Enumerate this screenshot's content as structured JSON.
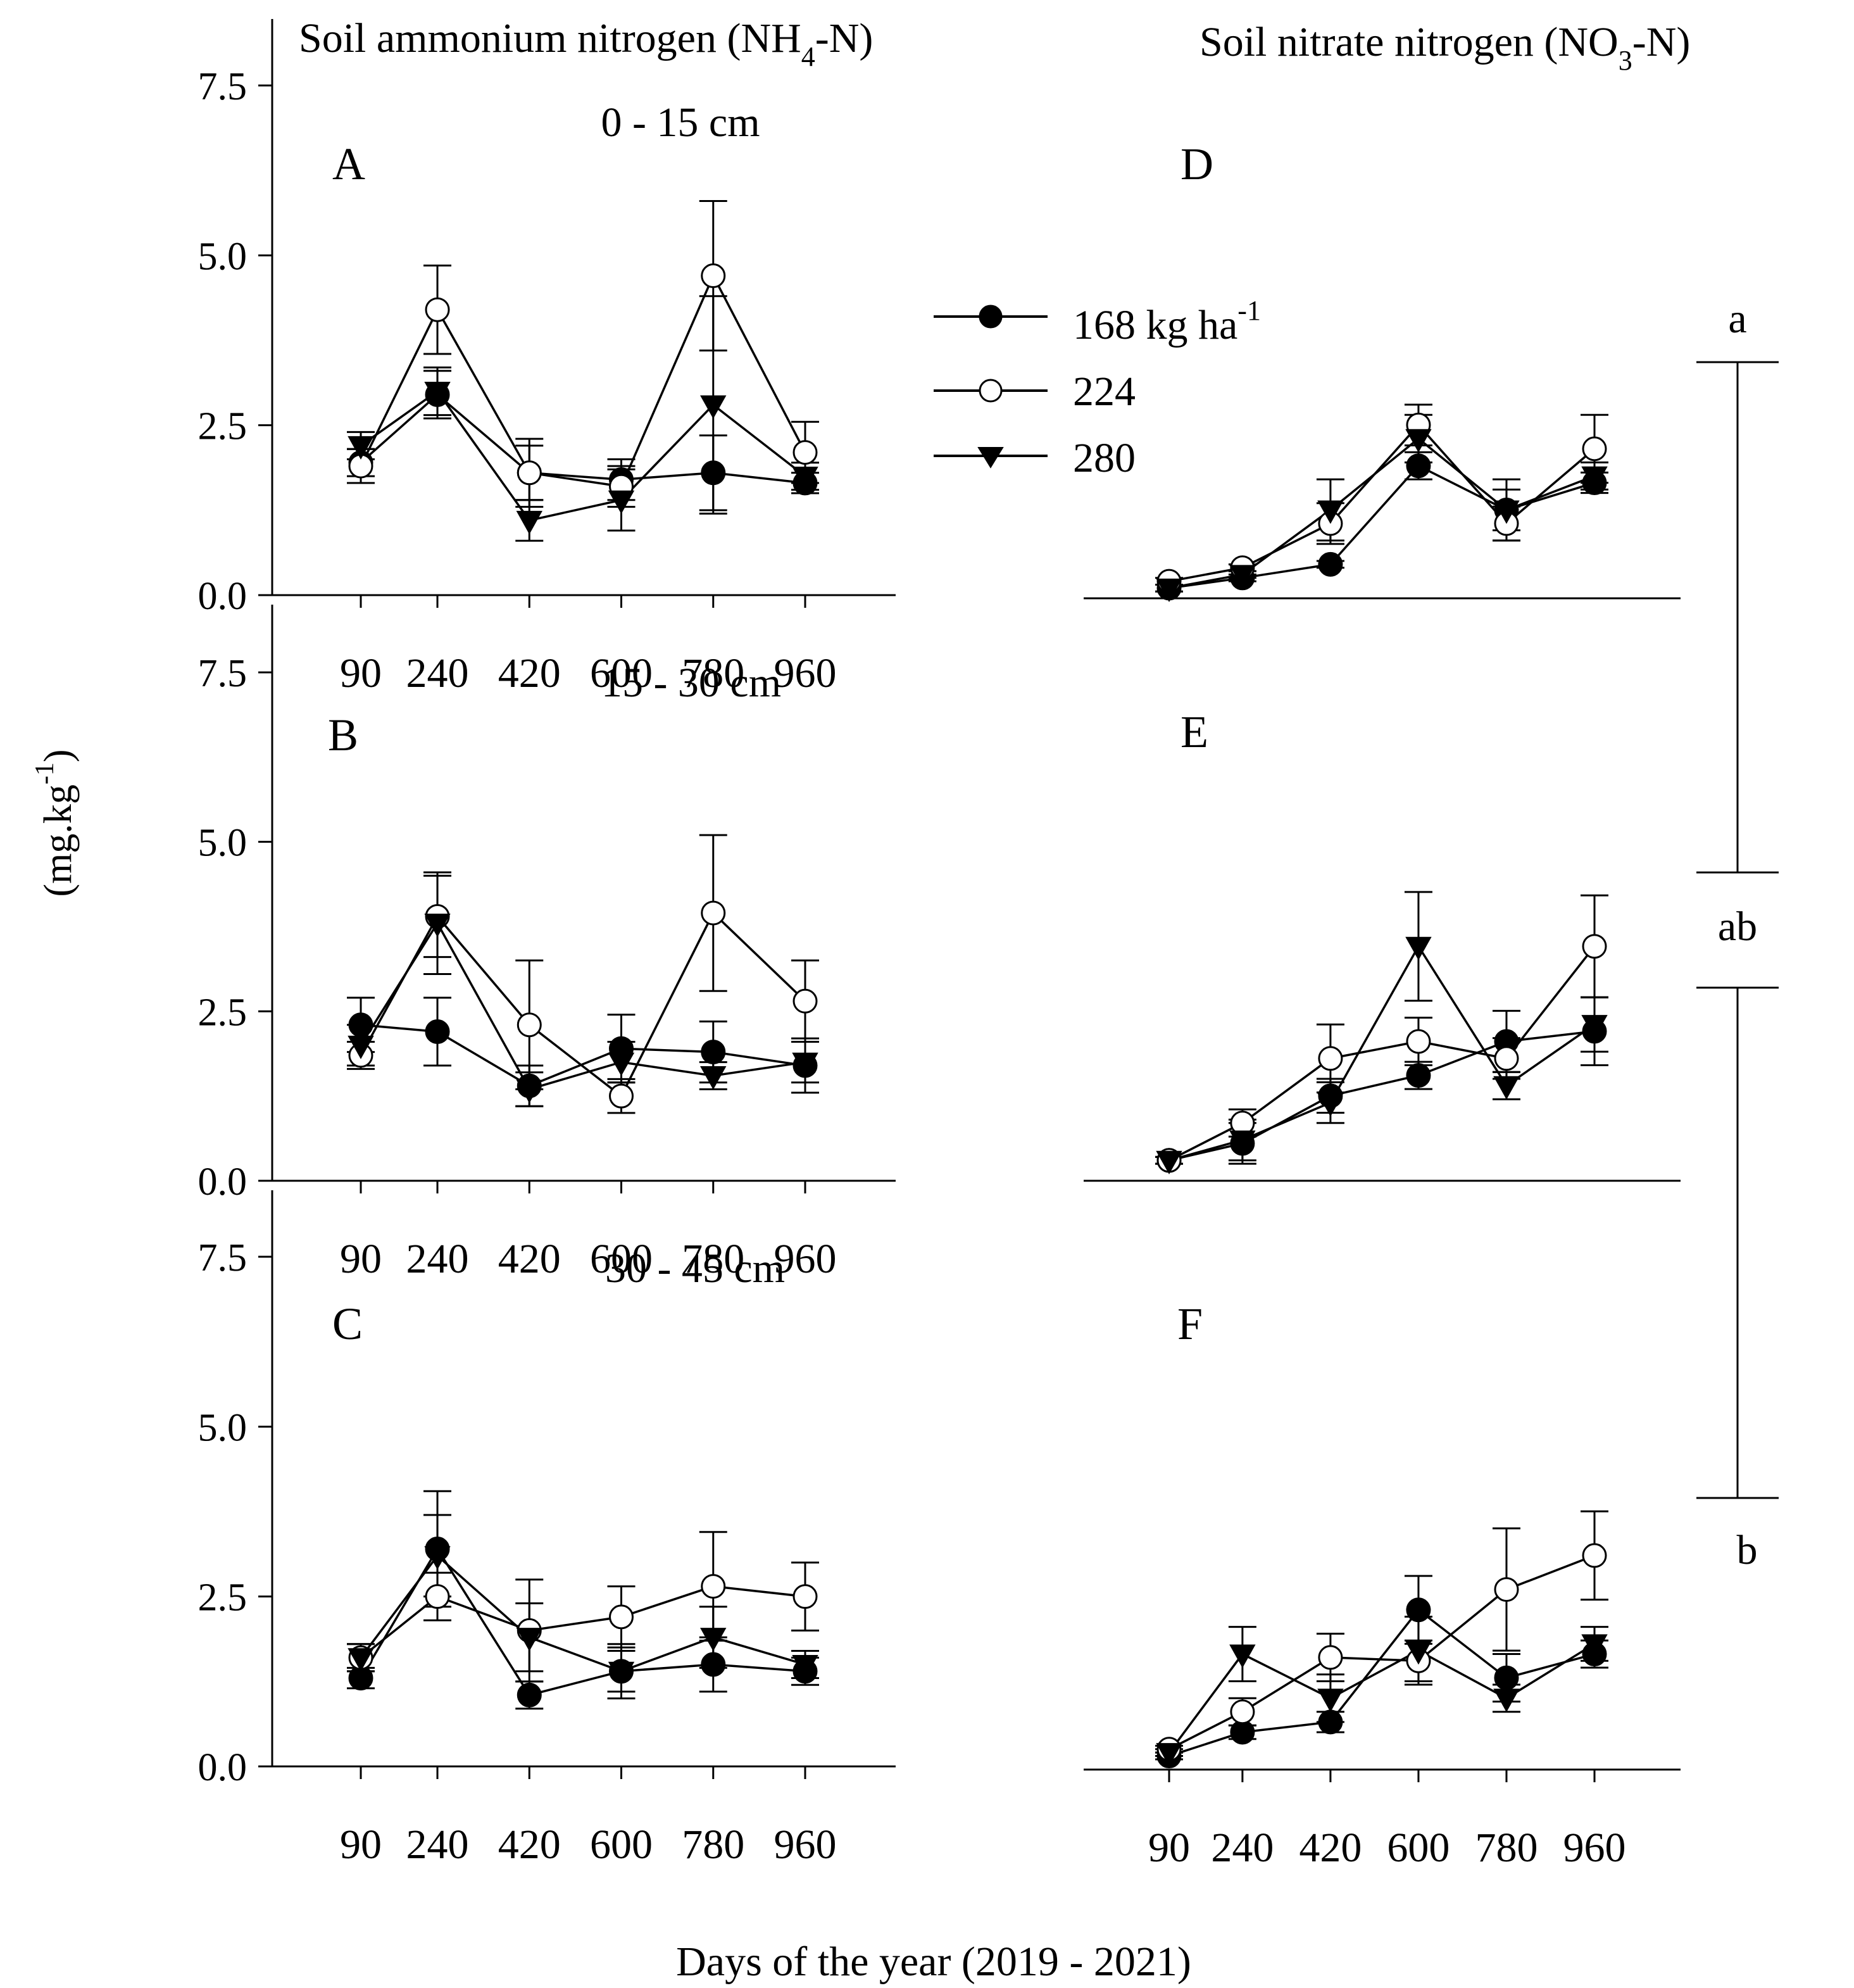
{
  "figure": {
    "y_axis_label": "(mg.kg",
    "y_axis_label_sup": "-1",
    "y_axis_label_end": ")",
    "x_axis_label": "Days of the year (2019 - 2021)",
    "left_column_title": "Soil ammonium nitrogen (NH",
    "left_column_title_sub": "4",
    "left_column_title_end": "-N)",
    "right_column_title": "Soil nitrate nitrogen (NO",
    "right_column_title_sub": "3",
    "right_column_title_end": "-N)"
  },
  "legend": {
    "entries": [
      {
        "label": "168 kg ha",
        "label_sup": "-1",
        "marker": "filled-circle"
      },
      {
        "label": "224",
        "marker": "open-circle"
      },
      {
        "label": "280",
        "marker": "filled-triangle-down"
      }
    ]
  },
  "significance": {
    "letters": [
      "a",
      "ab",
      "b"
    ]
  },
  "chart_data": [
    {
      "type": "line",
      "panel": "A",
      "title": "0 - 15 cm",
      "xlabel": "",
      "ylabel": "(mg.kg-1)",
      "x": [
        90,
        240,
        420,
        600,
        780,
        960
      ],
      "x_ticks": [
        "90",
        "240",
        "420",
        "600",
        "780",
        "960"
      ],
      "y_ticks": [
        "0.0",
        "2.5",
        "5.0",
        "7.5"
      ],
      "ylim": [
        0,
        7.5
      ],
      "series": [
        {
          "name": "168 kg ha-1",
          "values": [
            1.95,
            2.95,
            1.8,
            1.7,
            1.8,
            1.65
          ],
          "errors": [
            0.2,
            0.35,
            0.4,
            0.3,
            0.55,
            0.15
          ]
        },
        {
          "name": "224",
          "values": [
            1.9,
            4.2,
            1.8,
            1.6,
            4.7,
            2.1
          ],
          "errors": [
            0.25,
            0.65,
            0.5,
            0.3,
            1.1,
            0.45
          ]
        },
        {
          "name": "280",
          "values": [
            2.2,
            3.0,
            1.1,
            1.4,
            2.8,
            1.75
          ],
          "errors": [
            0.2,
            0.35,
            0.3,
            0.45,
            1.6,
            0.2
          ]
        }
      ]
    },
    {
      "type": "line",
      "panel": "B",
      "title": "15 - 30 cm",
      "xlabel": "",
      "ylabel": "(mg.kg-1)",
      "x": [
        90,
        240,
        420,
        600,
        780,
        960
      ],
      "x_ticks": [
        "90",
        "240",
        "420",
        "600",
        "780",
        "960"
      ],
      "y_ticks": [
        "0.0",
        "2.5",
        "5.0",
        "7.5"
      ],
      "ylim": [
        0,
        7.5
      ],
      "series": [
        {
          "name": "168 kg ha-1",
          "values": [
            2.3,
            2.2,
            1.4,
            1.95,
            1.9,
            1.7
          ],
          "errors": [
            0.4,
            0.5,
            0.3,
            0.5,
            0.45,
            0.4
          ]
        },
        {
          "name": "224",
          "values": [
            1.85,
            3.9,
            2.3,
            1.25,
            3.95,
            2.65
          ],
          "errors": [
            0.2,
            0.6,
            0.95,
            0.25,
            1.15,
            0.6
          ]
        },
        {
          "name": "280",
          "values": [
            2.0,
            3.8,
            1.35,
            1.75,
            1.55,
            1.75
          ],
          "errors": [
            0.3,
            0.75,
            0.25,
            0.3,
            0.2,
            0.3
          ]
        }
      ]
    },
    {
      "type": "line",
      "panel": "C",
      "title": "30 - 45 cm",
      "xlabel": "Days of the year (2019 - 2021)",
      "ylabel": "(mg.kg-1)",
      "x": [
        90,
        240,
        420,
        600,
        780,
        960
      ],
      "x_ticks": [
        "90",
        "240",
        "420",
        "600",
        "780",
        "960"
      ],
      "y_ticks": [
        "0.0",
        "2.5",
        "5.0",
        "7.5"
      ],
      "ylim": [
        0,
        7.5
      ],
      "series": [
        {
          "name": "168 kg ha-1",
          "values": [
            1.3,
            3.2,
            1.05,
            1.4,
            1.5,
            1.4
          ],
          "errors": [
            0.15,
            0.85,
            0.2,
            0.4,
            0.4,
            0.2
          ]
        },
        {
          "name": "224",
          "values": [
            1.6,
            2.5,
            2.0,
            2.2,
            2.65,
            2.5
          ],
          "errors": [
            0.2,
            0.35,
            0.75,
            0.45,
            0.8,
            0.5
          ]
        },
        {
          "name": "280",
          "values": [
            1.6,
            3.1,
            1.9,
            1.4,
            1.9,
            1.5
          ],
          "errors": [
            0.2,
            0.6,
            0.5,
            0.3,
            0.45,
            0.2
          ]
        }
      ]
    },
    {
      "type": "line",
      "panel": "D",
      "title": "",
      "xlabel": "",
      "ylabel": "",
      "x": [
        90,
        240,
        420,
        600,
        780,
        960
      ],
      "x_ticks": [],
      "y_ticks": [],
      "ylim": [
        0,
        7.5
      ],
      "series": [
        {
          "name": "168 kg ha-1",
          "values": [
            0.15,
            0.3,
            0.5,
            1.95,
            1.3,
            1.7
          ],
          "errors": [
            0.05,
            0.05,
            0.05,
            0.2,
            0.45,
            0.15
          ]
        },
        {
          "name": "224",
          "values": [
            0.25,
            0.45,
            1.1,
            2.55,
            1.1,
            2.2
          ],
          "errors": [
            0.05,
            0.05,
            0.3,
            0.3,
            0.25,
            0.5
          ]
        },
        {
          "name": "280",
          "values": [
            0.15,
            0.35,
            1.3,
            2.35,
            1.3,
            1.8
          ],
          "errors": [
            0.05,
            0.05,
            0.45,
            0.35,
            0.3,
            0.2
          ]
        }
      ]
    },
    {
      "type": "line",
      "panel": "E",
      "title": "",
      "xlabel": "",
      "ylabel": "",
      "x": [
        90,
        240,
        420,
        600,
        780,
        960
      ],
      "x_ticks": [],
      "y_ticks": [],
      "ylim": [
        0,
        7.5
      ],
      "series": [
        {
          "name": "168 kg ha-1",
          "values": [
            0.3,
            0.55,
            1.25,
            1.55,
            2.05,
            2.2
          ],
          "errors": [
            0.05,
            0.3,
            0.25,
            0.2,
            0.45,
            0.5
          ]
        },
        {
          "name": "224",
          "values": [
            0.3,
            0.85,
            1.8,
            2.05,
            1.8,
            3.45
          ],
          "errors": [
            0.05,
            0.2,
            0.5,
            0.35,
            0.3,
            0.75
          ]
        },
        {
          "name": "280",
          "values": [
            0.3,
            0.6,
            1.15,
            3.45,
            1.4,
            2.3
          ],
          "errors": [
            0.05,
            0.3,
            0.3,
            0.8,
            0.2,
            0.4
          ]
        }
      ]
    },
    {
      "type": "line",
      "panel": "F",
      "title": "",
      "xlabel": "Days of the year (2019 - 2021)",
      "ylabel": "",
      "x": [
        90,
        240,
        420,
        600,
        780,
        960
      ],
      "x_ticks": [
        "90",
        "240",
        "420",
        "600",
        "780",
        "960"
      ],
      "y_ticks": [],
      "ylim": [
        0,
        7.5
      ],
      "series": [
        {
          "name": "168 kg ha-1",
          "values": [
            0.2,
            0.55,
            0.7,
            2.35,
            1.35,
            1.7
          ],
          "errors": [
            0.05,
            0.1,
            0.15,
            0.5,
            0.35,
            0.2
          ]
        },
        {
          "name": "224",
          "values": [
            0.3,
            0.85,
            1.65,
            1.6,
            2.65,
            3.15
          ],
          "errors": [
            0.05,
            0.2,
            0.35,
            0.3,
            0.9,
            0.65
          ]
        },
        {
          "name": "280",
          "values": [
            0.25,
            1.7,
            1.05,
            1.75,
            1.05,
            1.85
          ],
          "errors": [
            0.05,
            0.4,
            0.35,
            0.5,
            0.2,
            0.25
          ]
        }
      ]
    }
  ]
}
